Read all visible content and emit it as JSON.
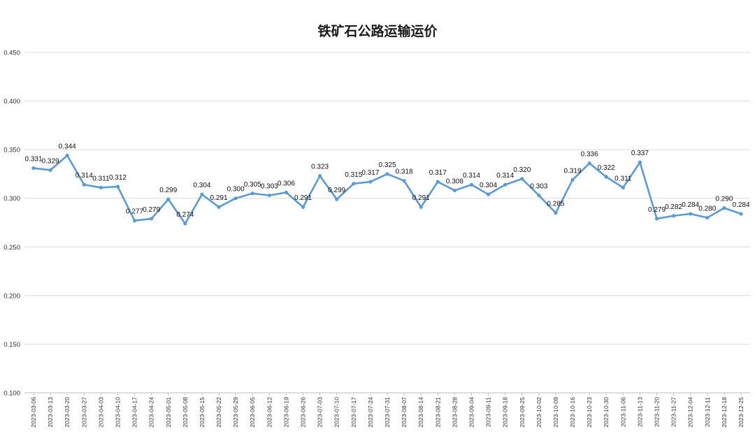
{
  "chart_data": {
    "type": "line",
    "title": "铁矿石公路运输运价",
    "ylim": [
      0.1,
      0.45
    ],
    "yticks": [
      "0.100",
      "0.150",
      "0.200",
      "0.250",
      "0.300",
      "0.350",
      "0.400",
      "0.450"
    ],
    "grid": true,
    "legend": "none",
    "line_color": "#5b9bd5",
    "x": [
      "2023-03-06",
      "2023-03-13",
      "2023-03-20",
      "2023-03-27",
      "2023-04-03",
      "2023-04-10",
      "2023-04-17",
      "2023-04-24",
      "2023-05-01",
      "2023-05-08",
      "2023-05-15",
      "2023-05-22",
      "2023-05-29",
      "2023-06-05",
      "2023-06-12",
      "2023-06-19",
      "2023-06-26",
      "2023-07-03",
      "2023-07-10",
      "2023-07-17",
      "2023-07-24",
      "2023-07-31",
      "2023-08-07",
      "2023-08-14",
      "2023-08-21",
      "2023-08-28",
      "2023-09-04",
      "2023-09-11",
      "2023-09-18",
      "2023-09-25",
      "2023-10-02",
      "2023-10-09",
      "2023-10-16",
      "2023-10-23",
      "2023-10-30",
      "2023-11-06",
      "2023-11-13",
      "2023-11-20",
      "2023-11-27",
      "2023-12-04",
      "2023-12-11",
      "2023-12-18",
      "2023-12-25"
    ],
    "values": [
      0.331,
      0.329,
      0.344,
      0.314,
      0.311,
      0.312,
      0.277,
      0.279,
      0.299,
      0.274,
      0.304,
      0.291,
      0.3,
      0.305,
      0.303,
      0.306,
      0.291,
      0.323,
      0.299,
      0.315,
      0.317,
      0.325,
      0.318,
      0.291,
      0.317,
      0.308,
      0.314,
      0.304,
      0.314,
      0.32,
      0.303,
      0.285,
      0.319,
      0.336,
      0.322,
      0.311,
      0.337,
      0.279,
      0.282,
      0.284,
      0.28,
      0.29,
      0.284
    ],
    "labels": [
      "0.331",
      "0.329",
      "0.344",
      "0.314",
      "0.311",
      "0.312",
      "0.277",
      "0.279",
      "0.299",
      "0.274",
      "0.304",
      "0.291",
      "0.300",
      "0.305",
      "0.303",
      "0.306",
      "0.291",
      "0.323",
      "0.299",
      "0.315",
      "0.317",
      "0.325",
      "0.318",
      "0.291",
      "0.317",
      "0.308",
      "0.314",
      "0.304",
      "0.314",
      "0.320",
      "0.303",
      "0.285",
      "0.319",
      "0.336",
      "0.322",
      "0.311",
      "0.337",
      "0.279",
      "0.282",
      "0.284",
      "0.280",
      "0.290",
      "0.284"
    ]
  }
}
